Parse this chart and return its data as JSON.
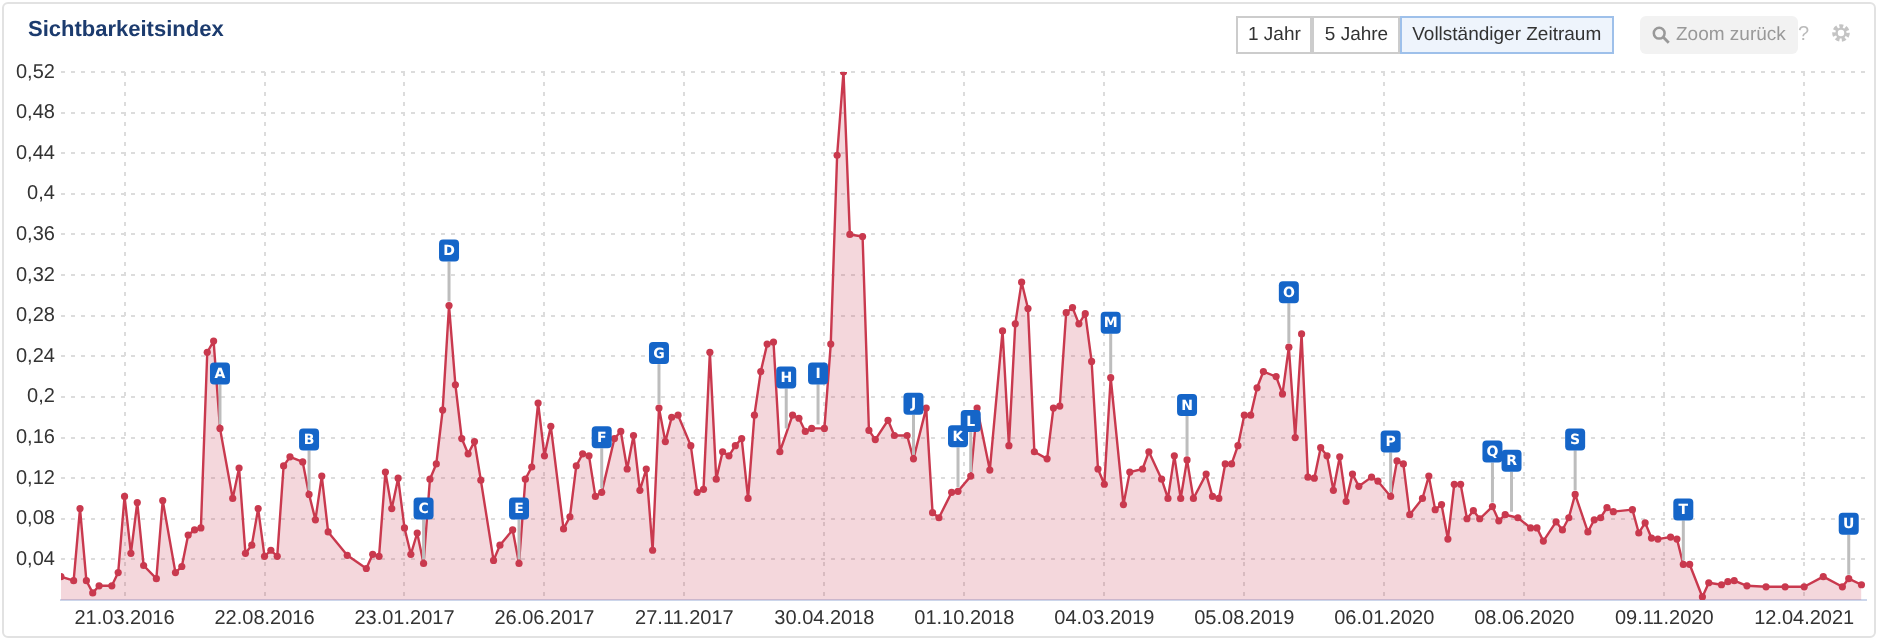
{
  "chart_data": {
    "type": "area",
    "title": "Sichtbarkeitsindex",
    "x": [
      "2016-01-11",
      "2016-01-25",
      "2016-02-01",
      "2016-02-08",
      "2016-02-15",
      "2016-02-22",
      "2016-03-07",
      "2016-03-14",
      "2016-03-21",
      "2016-03-28",
      "2016-04-04",
      "2016-04-11",
      "2016-04-25",
      "2016-05-02",
      "2016-05-16",
      "2016-05-23",
      "2016-05-30",
      "2016-06-06",
      "2016-06-13",
      "2016-06-20",
      "2016-06-27",
      "2016-07-04",
      "2016-07-18",
      "2016-07-25",
      "2016-08-01",
      "2016-08-08",
      "2016-08-15",
      "2016-08-22",
      "2016-08-29",
      "2016-09-05",
      "2016-09-12",
      "2016-09-19",
      "2016-10-03",
      "2016-10-10",
      "2016-10-17",
      "2016-10-24",
      "2016-10-31",
      "2016-11-21",
      "2016-12-12",
      "2016-12-19",
      "2016-12-26",
      "2017-01-02",
      "2017-01-09",
      "2017-01-16",
      "2017-01-23",
      "2017-01-30",
      "2017-02-06",
      "2017-02-13",
      "2017-02-20",
      "2017-02-27",
      "2017-03-06",
      "2017-03-13",
      "2017-03-20",
      "2017-03-27",
      "2017-04-03",
      "2017-04-10",
      "2017-04-17",
      "2017-05-01",
      "2017-05-08",
      "2017-05-22",
      "2017-05-29",
      "2017-06-05",
      "2017-06-12",
      "2017-06-19",
      "2017-06-26",
      "2017-07-03",
      "2017-07-17",
      "2017-07-24",
      "2017-07-31",
      "2017-08-07",
      "2017-08-14",
      "2017-08-21",
      "2017-08-28",
      "2017-09-11",
      "2017-09-18",
      "2017-09-25",
      "2017-10-02",
      "2017-10-09",
      "2017-10-16",
      "2017-10-23",
      "2017-10-30",
      "2017-11-06",
      "2017-11-13",
      "2017-11-20",
      "2017-12-04",
      "2017-12-11",
      "2017-12-18",
      "2017-12-25",
      "2018-01-01",
      "2018-01-08",
      "2018-01-15",
      "2018-01-22",
      "2018-01-29",
      "2018-02-05",
      "2018-02-12",
      "2018-02-19",
      "2018-02-26",
      "2018-03-05",
      "2018-03-12",
      "2018-03-26",
      "2018-04-02",
      "2018-04-09",
      "2018-04-16",
      "2018-04-30",
      "2018-05-07",
      "2018-05-14",
      "2018-05-21",
      "2018-05-28",
      "2018-06-11",
      "2018-06-18",
      "2018-06-25",
      "2018-07-09",
      "2018-07-16",
      "2018-07-30",
      "2018-08-06",
      "2018-08-20",
      "2018-08-27",
      "2018-09-03",
      "2018-09-17",
      "2018-09-24",
      "2018-10-08",
      "2018-10-15",
      "2018-10-29",
      "2018-11-12",
      "2018-11-19",
      "2018-11-26",
      "2018-12-03",
      "2018-12-10",
      "2018-12-17",
      "2018-12-31",
      "2019-01-07",
      "2019-01-14",
      "2019-01-21",
      "2019-01-28",
      "2019-02-04",
      "2019-02-11",
      "2019-02-18",
      "2019-02-25",
      "2019-03-04",
      "2019-03-11",
      "2019-03-25",
      "2019-04-01",
      "2019-04-15",
      "2019-04-22",
      "2019-05-06",
      "2019-05-13",
      "2019-05-20",
      "2019-05-27",
      "2019-06-03",
      "2019-06-10",
      "2019-06-24",
      "2019-07-01",
      "2019-07-08",
      "2019-07-15",
      "2019-07-22",
      "2019-07-29",
      "2019-08-05",
      "2019-08-12",
      "2019-08-19",
      "2019-08-26",
      "2019-09-09",
      "2019-09-16",
      "2019-09-23",
      "2019-09-30",
      "2019-10-07",
      "2019-10-14",
      "2019-10-21",
      "2019-10-28",
      "2019-11-04",
      "2019-11-11",
      "2019-11-18",
      "2019-11-25",
      "2019-12-02",
      "2019-12-09",
      "2019-12-23",
      "2019-12-30",
      "2020-01-13",
      "2020-01-20",
      "2020-01-27",
      "2020-02-03",
      "2020-02-17",
      "2020-02-24",
      "2020-03-02",
      "2020-03-09",
      "2020-03-16",
      "2020-03-23",
      "2020-03-30",
      "2020-04-06",
      "2020-04-13",
      "2020-04-20",
      "2020-05-04",
      "2020-05-11",
      "2020-05-18",
      "2020-06-01",
      "2020-06-15",
      "2020-06-22",
      "2020-06-29",
      "2020-07-13",
      "2020-07-20",
      "2020-07-27",
      "2020-08-03",
      "2020-08-17",
      "2020-08-24",
      "2020-08-31",
      "2020-09-07",
      "2020-09-14",
      "2020-10-05",
      "2020-10-12",
      "2020-10-19",
      "2020-10-26",
      "2020-11-02",
      "2020-11-16",
      "2020-11-23",
      "2020-11-30",
      "2020-12-07",
      "2020-12-21",
      "2020-12-28",
      "2021-01-11",
      "2021-01-18",
      "2021-01-25",
      "2021-02-08",
      "2021-03-01",
      "2021-03-22",
      "2021-04-12",
      "2021-05-03",
      "2021-05-24",
      "2021-05-31",
      "2021-06-14"
    ],
    "series": [
      {
        "color": "#c9394e",
        "values": [
          0.023,
          0.019,
          0.09,
          0.019,
          0.007,
          0.014,
          0.014,
          0.027,
          0.102,
          0.046,
          0.096,
          0.034,
          0.021,
          0.098,
          0.027,
          0.033,
          0.064,
          0.069,
          0.071,
          0.244,
          0.255,
          0.169,
          0.1,
          0.13,
          0.046,
          0.054,
          0.09,
          0.043,
          0.049,
          0.043,
          0.132,
          0.141,
          0.136,
          0.104,
          0.079,
          0.122,
          0.067,
          0.044,
          0.031,
          0.045,
          0.043,
          0.126,
          0.09,
          0.12,
          0.071,
          0.045,
          0.066,
          0.036,
          0.119,
          0.134,
          0.187,
          0.29,
          0.212,
          0.159,
          0.144,
          0.156,
          0.118,
          0.039,
          0.054,
          0.069,
          0.036,
          0.119,
          0.131,
          0.194,
          0.142,
          0.171,
          0.07,
          0.082,
          0.132,
          0.144,
          0.142,
          0.102,
          0.106,
          0.159,
          0.166,
          0.129,
          0.162,
          0.108,
          0.129,
          0.049,
          0.189,
          0.156,
          0.18,
          0.182,
          0.152,
          0.106,
          0.109,
          0.244,
          0.119,
          0.146,
          0.142,
          0.152,
          0.159,
          0.1,
          0.182,
          0.225,
          0.252,
          0.254,
          0.146,
          0.182,
          0.179,
          0.166,
          0.169,
          0.169,
          0.252,
          0.438,
          0.52,
          0.36,
          0.358,
          0.167,
          0.158,
          0.177,
          0.162,
          0.162,
          0.139,
          0.189,
          0.086,
          0.081,
          0.106,
          0.107,
          0.122,
          0.189,
          0.128,
          0.265,
          0.152,
          0.272,
          0.313,
          0.287,
          0.146,
          0.139,
          0.189,
          0.191,
          0.283,
          0.288,
          0.272,
          0.282,
          0.235,
          0.129,
          0.114,
          0.219,
          0.094,
          0.126,
          0.129,
          0.146,
          0.119,
          0.1,
          0.142,
          0.1,
          0.138,
          0.1,
          0.124,
          0.102,
          0.1,
          0.134,
          0.134,
          0.152,
          0.182,
          0.182,
          0.209,
          0.225,
          0.22,
          0.203,
          0.249,
          0.16,
          0.262,
          0.121,
          0.12,
          0.15,
          0.142,
          0.108,
          0.141,
          0.097,
          0.124,
          0.112,
          0.121,
          0.117,
          0.102,
          0.137,
          0.134,
          0.084,
          0.1,
          0.122,
          0.089,
          0.094,
          0.06,
          0.114,
          0.114,
          0.08,
          0.088,
          0.08,
          0.092,
          0.078,
          0.084,
          0.081,
          0.071,
          0.071,
          0.058,
          0.077,
          0.069,
          0.081,
          0.104,
          0.067,
          0.079,
          0.081,
          0.091,
          0.087,
          0.089,
          0.066,
          0.076,
          0.061,
          0.06,
          0.062,
          0.06,
          0.035,
          0.035,
          0.003,
          0.017,
          0.015,
          0.018,
          0.019,
          0.014,
          0.013,
          0.013,
          0.013,
          0.023,
          0.013,
          0.021,
          0.015
        ]
      }
    ],
    "xlim": [
      "2016-01-11",
      "2021-06-19"
    ],
    "xticks": [
      {
        "value": "2016-03-21",
        "label": "21.03.2016"
      },
      {
        "value": "2016-08-22",
        "label": "22.08.2016"
      },
      {
        "value": "2017-01-23",
        "label": "23.01.2017"
      },
      {
        "value": "2017-06-26",
        "label": "26.06.2017"
      },
      {
        "value": "2017-11-27",
        "label": "27.11.2017"
      },
      {
        "value": "2018-04-30",
        "label": "30.04.2018"
      },
      {
        "value": "2018-10-01",
        "label": "01.10.2018"
      },
      {
        "value": "2019-03-04",
        "label": "04.03.2019"
      },
      {
        "value": "2019-08-05",
        "label": "05.08.2019"
      },
      {
        "value": "2020-01-06",
        "label": "06.01.2020"
      },
      {
        "value": "2020-06-08",
        "label": "08.06.2020"
      },
      {
        "value": "2020-11-09",
        "label": "09.11.2020"
      },
      {
        "value": "2021-04-12",
        "label": "12.04.2021"
      }
    ],
    "ylim": [
      0,
      0.52
    ],
    "yticks": [
      {
        "value": 0,
        "label": null
      },
      {
        "value": 0.04,
        "label": "0,04"
      },
      {
        "value": 0.08,
        "label": "0,08"
      },
      {
        "value": 0.12,
        "label": "0,12"
      },
      {
        "value": 0.16,
        "label": "0,16"
      },
      {
        "value": 0.2,
        "label": "0,2"
      },
      {
        "value": 0.24,
        "label": "0,24"
      },
      {
        "value": 0.28,
        "label": "0,28"
      },
      {
        "value": 0.32,
        "label": "0,32"
      },
      {
        "value": 0.36,
        "label": "0,36"
      },
      {
        "value": 0.4,
        "label": "0,4"
      },
      {
        "value": 0.44,
        "label": "0,44"
      },
      {
        "value": 0.48,
        "label": "0,48"
      },
      {
        "value": 0.52,
        "label": "0,52"
      }
    ],
    "grid": true,
    "marker": "circle",
    "line_style": "solid",
    "annotations": [
      "1 Jahr",
      "5 Jahre",
      "Vollständiger Zeitraum",
      "Zoom zurück",
      "?",
      {
        "text": "A",
        "x": "2016-07-04",
        "y": 0.169
      },
      {
        "text": "B",
        "x": "2016-10-10",
        "y": 0.104
      },
      {
        "text": "C",
        "x": "2017-02-13",
        "y": 0.036
      },
      {
        "text": "D",
        "x": "2017-03-13",
        "y": 0.29
      },
      {
        "text": "E",
        "x": "2017-05-29",
        "y": 0.036
      },
      {
        "text": "F",
        "x": "2017-08-28",
        "y": 0.106
      },
      {
        "text": "G",
        "x": "2017-10-30",
        "y": 0.189
      },
      {
        "text": "H",
        "x": "2018-03-19",
        "y": 0.165
      },
      {
        "text": "I",
        "x": "2018-04-23",
        "y": 0.169
      },
      {
        "text": "J",
        "x": "2018-08-06",
        "y": 0.139
      },
      {
        "text": "K",
        "x": "2018-09-24",
        "y": 0.107
      },
      {
        "text": "L",
        "x": "2018-10-08",
        "y": 0.122
      },
      {
        "text": "M",
        "x": "2019-03-11",
        "y": 0.219
      },
      {
        "text": "N",
        "x": "2019-06-03",
        "y": 0.138
      },
      {
        "text": "O",
        "x": "2019-09-23",
        "y": 0.249
      },
      {
        "text": "P",
        "x": "2020-01-13",
        "y": 0.102
      },
      {
        "text": "Q",
        "x": "2020-05-04",
        "y": 0.092
      },
      {
        "text": "R",
        "x": "2020-05-25",
        "y": 0.083
      },
      {
        "text": "S",
        "x": "2020-08-03",
        "y": 0.104
      },
      {
        "text": "T",
        "x": "2020-11-30",
        "y": 0.035
      },
      {
        "text": "U",
        "x": "2021-05-31",
        "y": 0.021
      }
    ]
  }
}
